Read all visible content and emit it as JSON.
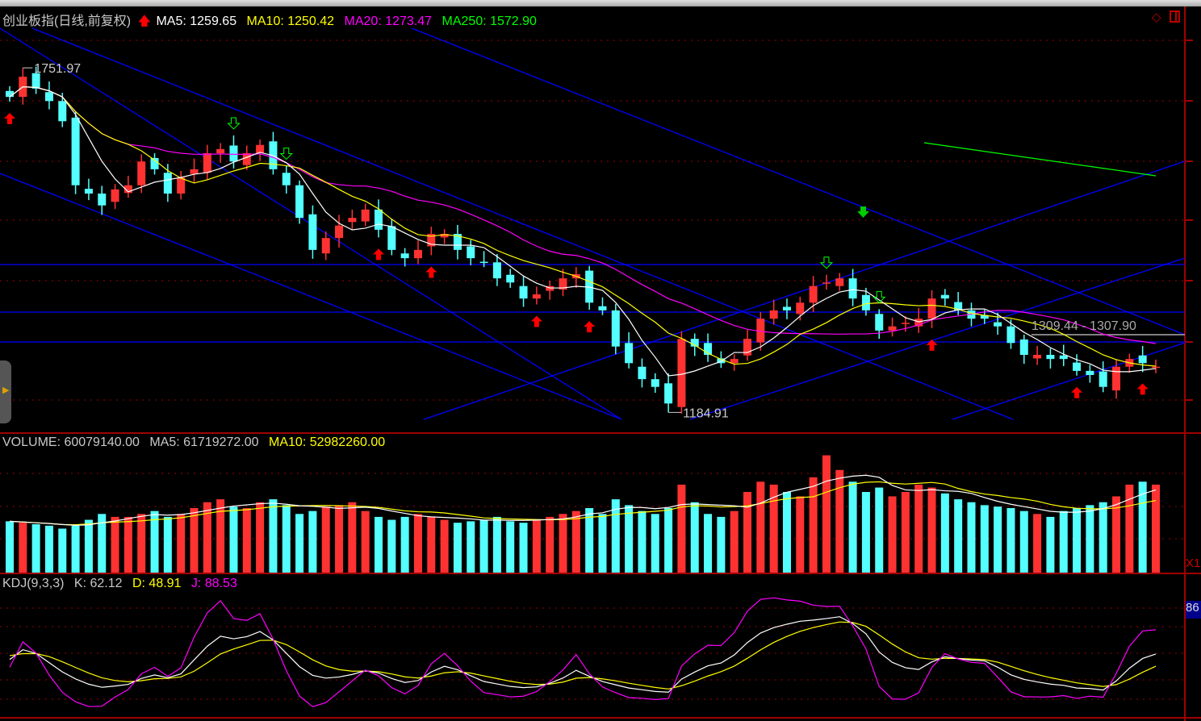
{
  "header": {
    "title": "创业板指(日线,前复权)",
    "ma5": "MA5: 1259.65",
    "ma10": "MA10: 1250.42",
    "ma20": "MA20: 1273.47",
    "ma250": "MA250: 1572.90"
  },
  "volume_header": {
    "volume": "VOLUME: 60079140.00",
    "ma5": "MA5: 61719272.00",
    "ma10": "MA10: 52982260.00"
  },
  "kdj_header": {
    "name": "KDJ(9,3,3)",
    "k": "K: 62.12",
    "d": "D: 48.91",
    "j": "J: 88.53"
  },
  "annotations": {
    "high": "1751.97",
    "low": "1184.91",
    "range": "1309.44 - 1307.90"
  },
  "right_axis": {
    "volume_unit": "X1",
    "kdj_badge": "86"
  },
  "colors": {
    "up": "#ff3232",
    "down": "#54ffff",
    "ma5": "#ffffff",
    "ma10": "#ffff00",
    "ma20": "#ff00ff",
    "ma250": "#00ff00",
    "trendline": "#0000ff",
    "grid": "#a00000"
  },
  "chart_data": {
    "type": "candlestick",
    "close": [
      1715,
      1749,
      1729,
      1708,
      1674,
      1566,
      1552,
      1532,
      1559,
      1566,
      1606,
      1593,
      1552,
      1579,
      1593,
      1620,
      1627,
      1606,
      1620,
      1634,
      1593,
      1566,
      1511,
      1457,
      1477,
      1498,
      1511,
      1525,
      1491,
      1457,
      1443,
      1457,
      1484,
      1484,
      1457,
      1443,
      1436,
      1409,
      1402,
      1375,
      1382,
      1396,
      1409,
      1416,
      1368,
      1355,
      1294,
      1266,
      1239,
      1226,
      1198,
      1307,
      1294,
      1280,
      1266,
      1273,
      1307,
      1341,
      1355,
      1355,
      1368,
      1396,
      1402,
      1409,
      1375,
      1355,
      1321,
      1328,
      1334,
      1341,
      1375,
      1375,
      1355,
      1341,
      1341,
      1328,
      1300,
      1280,
      1280,
      1273,
      1273,
      1253,
      1246,
      1226,
      1260,
      1273,
      1266,
      1260
    ],
    "volume_millions": [
      35,
      34,
      33,
      32,
      30,
      32,
      36,
      40,
      38,
      38,
      40,
      42,
      38,
      40,
      44,
      48,
      50,
      45,
      44,
      48,
      50,
      46,
      40,
      42,
      45,
      46,
      48,
      42,
      38,
      36,
      38,
      40,
      38,
      36,
      34,
      35,
      36,
      38,
      35,
      34,
      36,
      38,
      40,
      42,
      44,
      40,
      50,
      46,
      42,
      40,
      44,
      60,
      48,
      40,
      38,
      42,
      55,
      62,
      60,
      55,
      52,
      65,
      80,
      70,
      62,
      55,
      58,
      52,
      55,
      60,
      58,
      54,
      50,
      48,
      46,
      45,
      44,
      42,
      40,
      38,
      42,
      44,
      46,
      48,
      52,
      60,
      62,
      60
    ],
    "ylim": [
      1150,
      1800
    ],
    "grid": true
  }
}
